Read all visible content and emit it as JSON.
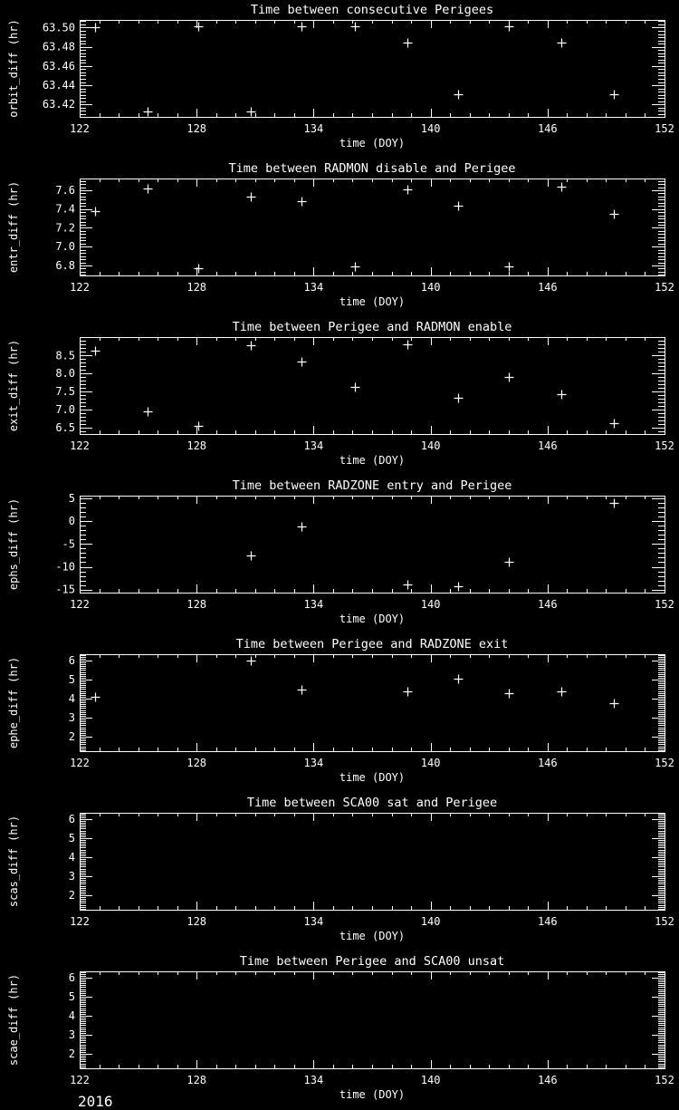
{
  "page": {
    "background": "#000000",
    "foreground": "#ffffff",
    "footer": "2016"
  },
  "axis_x": {
    "label": "time (DOY)",
    "min": 122,
    "max": 152,
    "ticks": [
      122,
      128,
      134,
      140,
      146,
      152
    ],
    "tick_labels": [
      "122",
      "128",
      "134",
      "140",
      "146",
      "152"
    ],
    "minor_step": 1
  },
  "chart_data": [
    {
      "type": "scatter",
      "marker": "plus",
      "title": "Time between consecutive Perigees",
      "ylabel": "orbit_diff (hr)",
      "xlabel": "time (DOY)",
      "ymin": 63.407,
      "ymax": 63.508,
      "ytick_values": [
        63.42,
        63.44,
        63.46,
        63.48,
        63.5
      ],
      "ytick_labels": [
        "63.42",
        "63.44",
        "63.46",
        "63.48",
        "63.50"
      ],
      "yminor_step": 0.0033333,
      "x": [
        122.8,
        125.5,
        128.1,
        130.8,
        133.4,
        136.1,
        138.8,
        141.4,
        144.0,
        146.7,
        149.4
      ],
      "y": [
        63.5,
        63.413,
        63.501,
        63.413,
        63.501,
        63.501,
        63.484,
        63.431,
        63.501,
        63.484,
        63.431
      ]
    },
    {
      "type": "scatter",
      "marker": "plus",
      "title": "Time between RADMON disable and Perigee",
      "ylabel": "entr_diff (hr)",
      "xlabel": "time (DOY)",
      "ymin": 6.694,
      "ymax": 7.725,
      "ytick_values": [
        6.8,
        7.0,
        7.2,
        7.4,
        7.6
      ],
      "ytick_labels": [
        "6.8",
        "7.0",
        "7.2",
        "7.4",
        "7.6"
      ],
      "yminor_step": 0.033333,
      "x": [
        122.8,
        125.5,
        128.1,
        130.8,
        133.4,
        136.1,
        138.8,
        141.4,
        144.0,
        146.7,
        149.4
      ],
      "y": [
        7.38,
        7.62,
        6.77,
        7.53,
        7.48,
        6.79,
        7.61,
        7.44,
        6.79,
        7.64,
        7.35
      ]
    },
    {
      "type": "scatter",
      "marker": "plus",
      "title": "Time between Perigee and RADMON enable",
      "ylabel": "exit_diff (hr)",
      "xlabel": "time (DOY)",
      "ymin": 6.325,
      "ymax": 9.008,
      "ytick_values": [
        6.5,
        7.0,
        7.5,
        8.0,
        8.5
      ],
      "ytick_labels": [
        "6.5",
        "7.0",
        "7.5",
        "8.0",
        "8.5"
      ],
      "yminor_step": 0.1,
      "x": [
        122.8,
        125.5,
        128.1,
        130.8,
        133.4,
        136.1,
        138.8,
        141.4,
        144.0,
        146.7,
        149.4
      ],
      "y": [
        8.62,
        6.96,
        6.54,
        8.78,
        8.33,
        7.64,
        8.81,
        7.33,
        7.91,
        7.43,
        6.63
      ]
    },
    {
      "type": "scatter",
      "marker": "plus",
      "title": "Time between RADZONE entry and Perigee",
      "ylabel": "ephs_diff (hr)",
      "xlabel": "time (DOY)",
      "ymin": -15.65,
      "ymax": 5.59,
      "ytick_values": [
        -15,
        -10,
        -5,
        0,
        5
      ],
      "ytick_labels": [
        "-15",
        "-10",
        "-5",
        "0",
        "5"
      ],
      "yminor_step": 1,
      "x": [
        130.8,
        133.4,
        138.8,
        141.4,
        144.0,
        149.4
      ],
      "y": [
        -7.5,
        -1.1,
        -13.8,
        -14.2,
        -9.0,
        4.0
      ]
    },
    {
      "type": "scatter",
      "marker": "plus",
      "title": "Time between Perigee and RADZONE exit",
      "ylabel": "ephe_diff (hr)",
      "xlabel": "time (DOY)",
      "ymin": 1.24,
      "ymax": 6.33,
      "ytick_values": [
        2,
        3,
        4,
        5,
        6
      ],
      "ytick_labels": [
        "2",
        "3",
        "4",
        "5",
        "6"
      ],
      "yminor_step": 0.1,
      "x": [
        122.8,
        130.8,
        133.4,
        138.8,
        141.4,
        144.0,
        146.7,
        149.4
      ],
      "y": [
        4.08,
        5.99,
        4.49,
        4.37,
        5.03,
        4.27,
        4.4,
        3.76
      ]
    },
    {
      "type": "scatter",
      "marker": "plus",
      "title": "Time between SCA00 sat and Perigee",
      "ylabel": "scas_diff (hr)",
      "xlabel": "time (DOY)",
      "ymin": 1.24,
      "ymax": 6.33,
      "ytick_values": [
        2,
        3,
        4,
        5,
        6
      ],
      "ytick_labels": [
        "2",
        "3",
        "4",
        "5",
        "6"
      ],
      "yminor_step": 0.1,
      "x": [],
      "y": []
    },
    {
      "type": "scatter",
      "marker": "plus",
      "title": "Time between Perigee and SCA00 unsat",
      "ylabel": "scae_diff (hr)",
      "xlabel": "time (DOY)",
      "ymin": 1.24,
      "ymax": 6.33,
      "ytick_values": [
        2,
        3,
        4,
        5,
        6
      ],
      "ytick_labels": [
        "2",
        "3",
        "4",
        "5",
        "6"
      ],
      "yminor_step": 0.1,
      "x": [],
      "y": []
    }
  ]
}
